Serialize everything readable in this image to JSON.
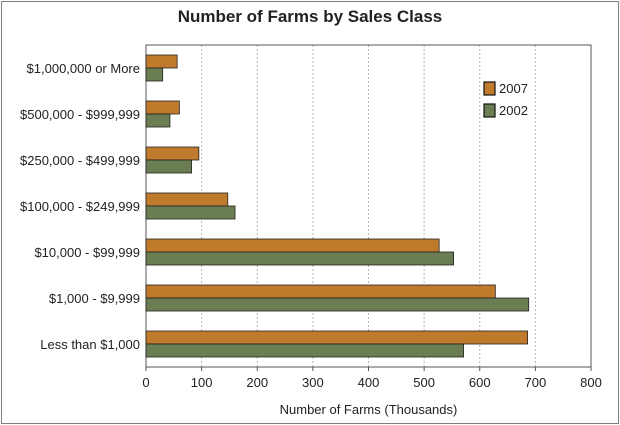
{
  "chart_data": {
    "type": "bar",
    "orientation": "horizontal",
    "title": "Number of Farms by Sales Class",
    "xlabel": "Number of Farms (Thousands)",
    "ylabel": "",
    "xlim": [
      0,
      800
    ],
    "xticks": [
      0,
      100,
      200,
      300,
      400,
      500,
      600,
      700,
      800
    ],
    "grid": true,
    "legend_position": "top-right",
    "categories": [
      "$1,000,000 or More",
      "$500,000 - $999,999",
      "$250,000 - $499,999",
      "$100,000 - $249,999",
      "$10,000 - $99,999",
      "$1,000 - $9,999",
      "Less than $1,000"
    ],
    "series": [
      {
        "name": "2007",
        "color": "#c07a2c",
        "values": [
          56,
          60,
          95,
          147,
          527,
          628,
          686
        ]
      },
      {
        "name": "2002",
        "color": "#6b7d52",
        "values": [
          30,
          43,
          82,
          160,
          553,
          688,
          571
        ]
      }
    ]
  }
}
